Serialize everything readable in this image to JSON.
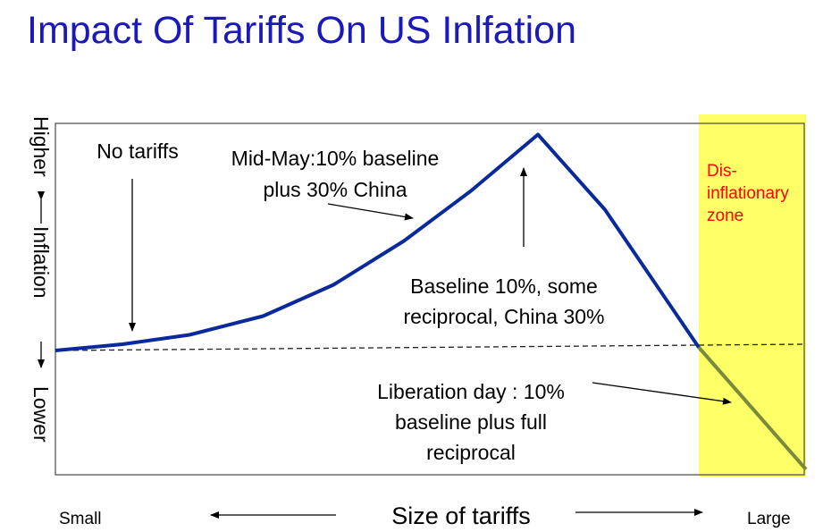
{
  "title": "Impact Of Tariffs On US Inlfation",
  "chart_data": {
    "type": "line",
    "title": "Impact Of Tariffs On US Inlfation",
    "xlabel": "Size of tariffs",
    "x_ends": {
      "left": "Small",
      "right": "Large"
    },
    "ylabel": {
      "top": "Higher",
      "middle": "Inflation",
      "bottom": "Lower"
    },
    "xlim": [
      0,
      10
    ],
    "ylim": [
      -4,
      7
    ],
    "grid": false,
    "series": [
      {
        "color": "#0a2a9c",
        "x": [
          0,
          1,
          2,
          3.1,
          4.15,
          5.2,
          6.2,
          7.2,
          8.2,
          9.6
        ],
        "y": [
          0,
          0.2,
          0.5,
          1.1,
          2.1,
          3.5,
          5.1,
          6.9,
          4.5,
          0.1
        ]
      },
      {
        "color": "#7a8a3c",
        "x": [
          9.6,
          11.2
        ],
        "y": [
          0.1,
          -3.8
        ]
      }
    ],
    "reference_line": {
      "style": "dashed",
      "x": [
        0,
        11.2
      ],
      "y": [
        0,
        0.2
      ]
    },
    "shaded_zone": {
      "label_lines": [
        "Dis-",
        "inflationary",
        "zone"
      ],
      "color": "#ffff66",
      "label_color": "#ff0000",
      "x_start": 9.6,
      "x_end": 11.2
    },
    "annotations": [
      {
        "id": "no-tariffs",
        "lines": [
          "No tariffs"
        ]
      },
      {
        "id": "mid-may",
        "lines": [
          "Mid-May:10% baseline",
          "plus 30% China"
        ]
      },
      {
        "id": "baseline-10",
        "lines": [
          "Baseline 10%, some",
          "reciprocal, China 30%"
        ]
      },
      {
        "id": "liberation-day",
        "lines": [
          "Liberation day : 10%",
          "baseline plus  full",
          "reciprocal"
        ]
      }
    ]
  }
}
